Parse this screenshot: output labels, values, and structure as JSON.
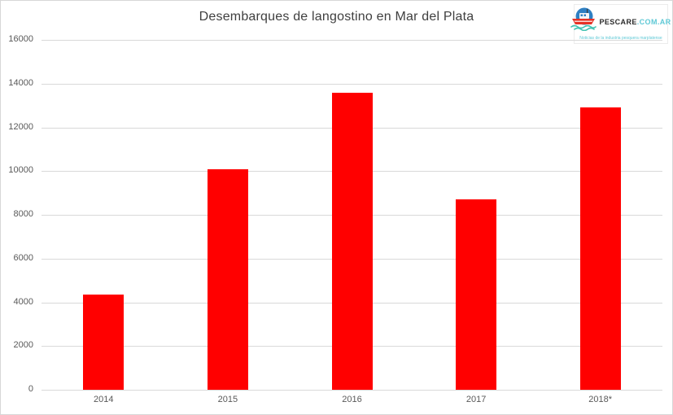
{
  "logo": {
    "name": "PESCARE",
    "domain": ".COM.AR",
    "tagline": "Noticias de la industria pesquera marplatense"
  },
  "colors": {
    "bar": "#FF0000",
    "title_text": "#3F3F3F",
    "axis_text": "#595959",
    "gridline": "#D9D9D9",
    "chart_border": "#D7D7D7",
    "logo_teal": "#5FC9D6",
    "logo_dark": "#2B2B2B",
    "logo_circle_blue": "#2F80C3",
    "logo_boat_red": "#E63226"
  },
  "chart_data": {
    "type": "bar",
    "title": "Desembarques de langostino en Mar del Plata",
    "categories": [
      "2014",
      "2015",
      "2016",
      "2017",
      "2018*"
    ],
    "values": [
      4350,
      10100,
      13600,
      8700,
      12900
    ],
    "xlabel": "",
    "ylabel": "",
    "ylim": [
      0,
      16000
    ],
    "ytick_step": 2000,
    "grid": true,
    "legend": false,
    "bar_color": "#FF0000"
  }
}
